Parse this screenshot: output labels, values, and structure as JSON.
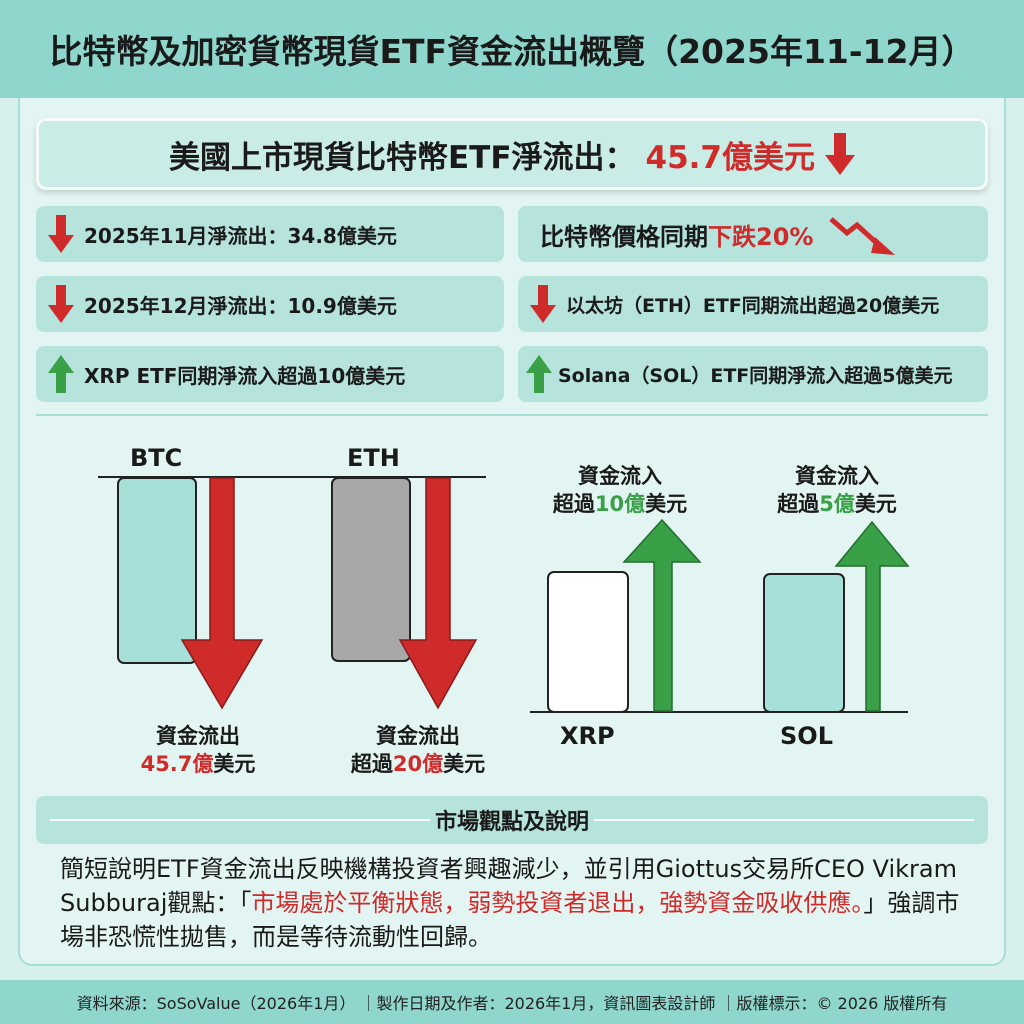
{
  "title": "比特幣及加密貨幣現貨ETF資金流出概覽（2025年11-12月）",
  "banner": {
    "text": "美國上市現貨比特幣ETF淨流出：",
    "value": "45.7億美元"
  },
  "cards": {
    "nov": "2025年11月淨流出：34.8億美元",
    "dec": "2025年12月淨流出：10.9億美元",
    "xrp": "XRP ETF同期淨流入超過10億美元",
    "price_prefix": "比特幣價格同期",
    "price_value": "下跌20%",
    "eth": "以太坊（ETH）ETF同期流出超過20億美元",
    "sol": "Solana（SOL）ETF同期淨流入超過5億美元"
  },
  "chart": {
    "btc": {
      "ticker": "BTC",
      "label1": "資金流出",
      "value": "45.7億",
      "unit": "美元"
    },
    "eth": {
      "ticker": "ETH",
      "label1": "資金流出",
      "prefix": "超過",
      "value": "20億",
      "unit": "美元"
    },
    "xrp": {
      "ticker": "XRP",
      "label1": "資金流入",
      "prefix": "超過",
      "value": "10億",
      "unit": "美元"
    },
    "sol": {
      "ticker": "SOL",
      "label1": "資金流入",
      "prefix": "超過",
      "value": "5億",
      "unit": "美元"
    }
  },
  "section": {
    "title": "市場觀點及說明"
  },
  "paragraph": {
    "part1": "簡短說明ETF資金流出反映機構投資者興趣減少，並引用Giottus交易所CEO Vikram Subburaj觀點：「",
    "quote": "市場處於平衡狀態，弱勢投資者退出，強勢資金吸收供應。",
    "part2": "」強調市場非恐慌性拋售，而是等待流動性回歸。"
  },
  "footer": "資料來源：SoSoValue（2026年1月） ｜製作日期及作者：2026年1月，資訊圖表設計師 ｜版權標示：© 2026 版權所有",
  "colors": {
    "teal": "#8fd6cc",
    "red": "#cf2b2b",
    "green": "#3aa048",
    "gray": "#a8a8a8"
  }
}
